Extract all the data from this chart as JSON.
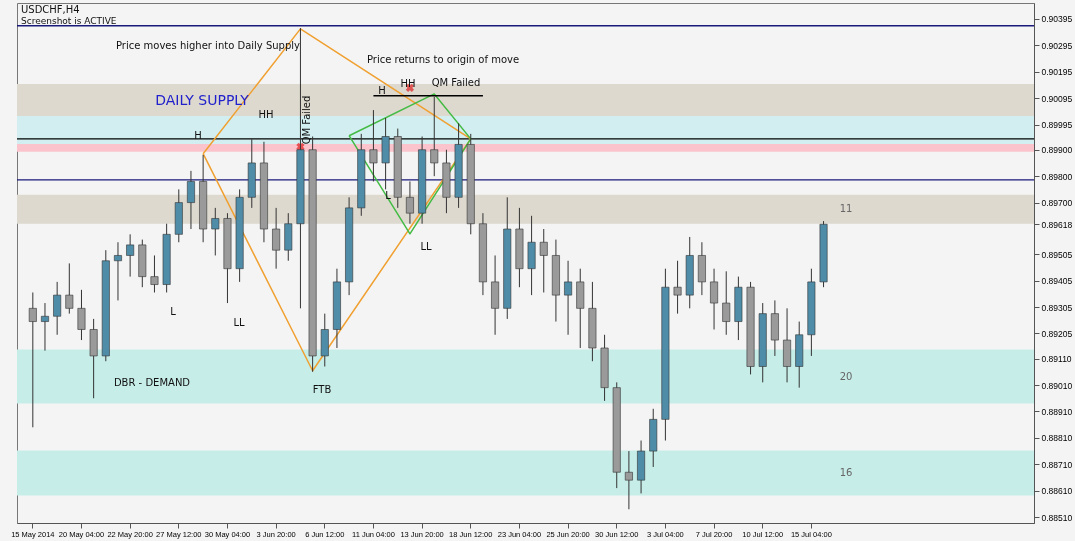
{
  "chart_data": {
    "type": "candlestick",
    "title": "USDCHF,H4",
    "subtitle": "Screenshot is ACTIVE",
    "categories": [
      "15 May 2014",
      null,
      null,
      null,
      "20 May 04:00",
      null,
      null,
      null,
      "22 May 20:00",
      null,
      null,
      null,
      "27 May 12:00",
      null,
      null,
      null,
      "30 May 04:00",
      null,
      null,
      null,
      "3 Jun 20:00",
      null,
      null,
      null,
      "6 Jun 12:00",
      null,
      null,
      null,
      "11 Jun 04:00",
      null,
      null,
      null,
      "13 Jun 20:00",
      null,
      null,
      null,
      "18 Jun 12:00",
      null,
      null,
      null,
      "23 Jun 04:00",
      null,
      null,
      null,
      "25 Jun 20:00",
      null,
      null,
      null,
      "30 Jun 12:00",
      null,
      null,
      null,
      "3 Jul 04:00",
      null,
      null,
      null,
      "7 Jul 20:00",
      null,
      null,
      null,
      "10 Jul 12:00",
      null,
      null,
      null,
      "15 Jul 04:00",
      null,
      null,
      null,
      null,
      null,
      null,
      null,
      null,
      null,
      null,
      null,
      null,
      null,
      null,
      null,
      null,
      null
    ],
    "ohlc": [
      [
        0.893,
        0.8936,
        0.8885,
        0.8925
      ],
      [
        0.8925,
        0.8932,
        0.8914,
        0.8927
      ],
      [
        0.8927,
        0.894,
        0.892,
        0.8935
      ],
      [
        0.8935,
        0.8947,
        0.8928,
        0.893
      ],
      [
        0.893,
        0.8937,
        0.8918,
        0.8922
      ],
      [
        0.8922,
        0.8926,
        0.8896,
        0.8912
      ],
      [
        0.8912,
        0.8952,
        0.891,
        0.8948
      ],
      [
        0.8948,
        0.8955,
        0.8933,
        0.895
      ],
      [
        0.895,
        0.8958,
        0.8942,
        0.8954
      ],
      [
        0.8954,
        0.8956,
        0.8938,
        0.8942
      ],
      [
        0.8942,
        0.895,
        0.8936,
        0.8939
      ],
      [
        0.8939,
        0.8962,
        0.8936,
        0.8958
      ],
      [
        0.8958,
        0.8975,
        0.8955,
        0.897
      ],
      [
        0.897,
        0.8982,
        0.896,
        0.8978
      ],
      [
        0.8978,
        0.8988,
        0.8955,
        0.896
      ],
      [
        0.896,
        0.8968,
        0.895,
        0.8964
      ],
      [
        0.8964,
        0.8966,
        0.8932,
        0.8945
      ],
      [
        0.8945,
        0.8975,
        0.894,
        0.8972
      ],
      [
        0.8972,
        0.8994,
        0.8968,
        0.8985
      ],
      [
        0.8985,
        0.8993,
        0.8955,
        0.896
      ],
      [
        0.896,
        0.8968,
        0.8945,
        0.8952
      ],
      [
        0.8952,
        0.8966,
        0.8948,
        0.8962
      ],
      [
        0.8962,
        0.9036,
        0.893,
        0.899
      ],
      [
        0.899,
        0.8995,
        0.8906,
        0.8912
      ],
      [
        0.8912,
        0.8928,
        0.8908,
        0.8922
      ],
      [
        0.8922,
        0.8945,
        0.8915,
        0.894
      ],
      [
        0.894,
        0.8972,
        0.8935,
        0.8968
      ],
      [
        0.8968,
        0.8996,
        0.8965,
        0.899
      ],
      [
        0.899,
        0.9005,
        0.8978,
        0.8985
      ],
      [
        0.8985,
        0.9002,
        0.8975,
        0.8995
      ],
      [
        0.8995,
        0.8998,
        0.8968,
        0.8972
      ],
      [
        0.8972,
        0.8978,
        0.8962,
        0.8966
      ],
      [
        0.8966,
        0.8995,
        0.8962,
        0.899
      ],
      [
        0.899,
        0.901,
        0.898,
        0.8985
      ],
      [
        0.8985,
        0.899,
        0.8966,
        0.8972
      ],
      [
        0.8972,
        0.9,
        0.8968,
        0.8992
      ],
      [
        0.8992,
        0.8996,
        0.8958,
        0.8962
      ],
      [
        0.8962,
        0.8966,
        0.8935,
        0.894
      ],
      [
        0.894,
        0.895,
        0.892,
        0.893
      ],
      [
        0.893,
        0.8972,
        0.8926,
        0.896
      ],
      [
        0.896,
        0.8968,
        0.8938,
        0.8945
      ],
      [
        0.8945,
        0.8965,
        0.8935,
        0.8955
      ],
      [
        0.8955,
        0.896,
        0.8936,
        0.895
      ],
      [
        0.895,
        0.8956,
        0.8925,
        0.8935
      ],
      [
        0.8935,
        0.8948,
        0.892,
        0.894
      ],
      [
        0.894,
        0.8945,
        0.8915,
        0.893
      ],
      [
        0.893,
        0.894,
        0.891,
        0.8915
      ],
      [
        0.8915,
        0.892,
        0.8895,
        0.89
      ],
      [
        0.89,
        0.8902,
        0.8862,
        0.8868
      ],
      [
        0.8868,
        0.8876,
        0.8854,
        0.8865
      ],
      [
        0.8865,
        0.888,
        0.886,
        0.8876
      ],
      [
        0.8876,
        0.8892,
        0.887,
        0.8888
      ],
      [
        0.8888,
        0.8945,
        0.888,
        0.8938
      ],
      [
        0.8938,
        0.8948,
        0.8928,
        0.8935
      ],
      [
        0.8935,
        0.8957,
        0.893,
        0.895
      ],
      [
        0.895,
        0.8955,
        0.8935,
        0.894
      ],
      [
        0.894,
        0.8945,
        0.8922,
        0.8932
      ],
      [
        0.8932,
        0.8944,
        0.892,
        0.8925
      ],
      [
        0.8925,
        0.8942,
        0.8918,
        0.8938
      ],
      [
        0.8938,
        0.894,
        0.8905,
        0.8908
      ],
      [
        0.8908,
        0.8932,
        0.8902,
        0.8928
      ],
      [
        0.8928,
        0.8933,
        0.8912,
        0.8918
      ],
      [
        0.8918,
        0.893,
        0.8902,
        0.8908
      ],
      [
        0.8908,
        0.8925,
        0.89,
        0.892
      ],
      [
        0.892,
        0.8945,
        0.8912,
        0.894
      ],
      [
        0.894,
        0.8963,
        0.8938,
        0.89618
      ],
      null,
      null,
      null,
      null,
      null,
      null,
      null,
      null,
      null,
      null,
      null,
      null,
      null,
      null,
      null,
      null
    ],
    "colors": [
      "#9a9a9a",
      "#4f8ca8",
      "#4f8ca8",
      "#9a9a9a",
      "#9a9a9a",
      "#9a9a9a",
      "#4f8ca8",
      "#4f8ca8",
      "#4f8ca8",
      "#9a9a9a",
      "#9a9a9a",
      "#4f8ca8",
      "#4f8ca8",
      "#4f8ca8",
      "#9a9a9a",
      "#4f8ca8",
      "#9a9a9a",
      "#4f8ca8",
      "#4f8ca8",
      "#9a9a9a",
      "#9a9a9a",
      "#4f8ca8",
      "#4f8ca8",
      "#9a9a9a",
      "#4f8ca8",
      "#4f8ca8",
      "#4f8ca8",
      "#4f8ca8",
      "#9a9a9a",
      "#4f8ca8",
      "#9a9a9a",
      "#9a9a9a",
      "#4f8ca8",
      "#9a9a9a",
      "#9a9a9a",
      "#4f8ca8",
      "#9a9a9a",
      "#9a9a9a",
      "#9a9a9a",
      "#4f8ca8",
      "#9a9a9a",
      "#4f8ca8",
      "#9a9a9a",
      "#9a9a9a",
      "#4f8ca8",
      "#9a9a9a",
      "#9a9a9a",
      "#9a9a9a",
      "#9a9a9a",
      "#9a9a9a",
      "#4f8ca8",
      "#4f8ca8",
      "#4f8ca8",
      "#9a9a9a",
      "#4f8ca8",
      "#9a9a9a",
      "#9a9a9a",
      "#9a9a9a",
      "#4f8ca8",
      "#9a9a9a",
      "#4f8ca8",
      "#9a9a9a",
      "#9a9a9a",
      "#4f8ca8",
      "#4f8ca8",
      "#4f8ca8",
      null,
      null,
      null,
      null,
      null,
      null,
      null,
      null,
      null,
      null,
      null,
      null,
      null,
      null,
      null,
      null
    ],
    "series": [
      {
        "type": "line",
        "color": "#f0a030",
        "values": [
          null,
          null,
          null,
          null,
          null,
          null,
          null,
          null,
          null,
          null,
          null,
          null,
          null,
          null,
          0.89885,
          null,
          null,
          null,
          null,
          null,
          null,
          null,
          0.90357,
          null,
          null,
          null,
          null,
          null,
          null,
          null,
          null,
          null,
          null,
          null,
          null,
          null,
          0.89941,
          null,
          null,
          null,
          null,
          null,
          null,
          null,
          null,
          null,
          null,
          null,
          null,
          null,
          null,
          null,
          null,
          null,
          null,
          null,
          null,
          null,
          null,
          null,
          null,
          null,
          null,
          null,
          null,
          null,
          null,
          null,
          null,
          null,
          null,
          null,
          null,
          null,
          null,
          null,
          null,
          null,
          null,
          null,
          null,
          null
        ]
      },
      {
        "type": "line",
        "color": "#f0a030",
        "values": [
          null,
          null,
          null,
          null,
          null,
          null,
          null,
          null,
          null,
          null,
          null,
          null,
          null,
          null,
          0.89885,
          null,
          null,
          null,
          null,
          null,
          null,
          null,
          null,
          0.89064,
          null,
          null,
          null,
          null,
          null,
          null,
          null,
          null,
          null,
          null,
          null,
          null,
          0.89941,
          null,
          null,
          null,
          null,
          null,
          null,
          null,
          null,
          null,
          null,
          null,
          null,
          null,
          null,
          null,
          null,
          null,
          null,
          null,
          null,
          null,
          null,
          null,
          null,
          null,
          null,
          null,
          null,
          null,
          null,
          null,
          null,
          null,
          null,
          null,
          null,
          null,
          null,
          null,
          null,
          null,
          null,
          null,
          null,
          null
        ]
      },
      {
        "type": "line",
        "color": "#44bb44",
        "values": [
          null,
          null,
          null,
          null,
          null,
          null,
          null,
          null,
          null,
          null,
          null,
          null,
          null,
          null,
          null,
          null,
          null,
          null,
          null,
          null,
          null,
          null,
          null,
          null,
          null,
          null,
          0.89953,
          null,
          null,
          null,
          null,
          null,
          null,
          0.90111,
          null,
          null,
          0.89941,
          null,
          null,
          null,
          null,
          null,
          null,
          null,
          null,
          null,
          null,
          null,
          null,
          null,
          null,
          null,
          null,
          null,
          null,
          null,
          null,
          null,
          null,
          null,
          null,
          null,
          null,
          null,
          null,
          null,
          null,
          null,
          null,
          null,
          null,
          null,
          null,
          null,
          null,
          null,
          null,
          null,
          null,
          null,
          null,
          null
        ]
      },
      {
        "type": "line",
        "color": "#44bb44",
        "values": [
          null,
          null,
          null,
          null,
          null,
          null,
          null,
          null,
          null,
          null,
          null,
          null,
          null,
          null,
          null,
          null,
          null,
          null,
          null,
          null,
          null,
          null,
          null,
          null,
          null,
          null,
          0.89953,
          null,
          null,
          null,
          null,
          0.89582,
          null,
          null,
          null,
          null,
          0.89941,
          null,
          null,
          null,
          null,
          null,
          null,
          null,
          null,
          null,
          null,
          null,
          null,
          null,
          null,
          null,
          null,
          null,
          null,
          null,
          null,
          null,
          null,
          null,
          null,
          null,
          null,
          null,
          null,
          null,
          null,
          null,
          null,
          null,
          null,
          null,
          null,
          null,
          null,
          null,
          null,
          null,
          null,
          null,
          null,
          null
        ]
      },
      {
        "type": "line",
        "color": "#000000",
        "values": [
          null,
          null,
          null,
          null,
          null,
          null,
          null,
          null,
          null,
          null,
          null,
          null,
          null,
          null,
          null,
          null,
          null,
          null,
          null,
          null,
          null,
          null,
          null,
          null,
          null,
          null,
          null,
          null,
          0.90104,
          null,
          null,
          null,
          null,
          null,
          null,
          null,
          null,
          0.90104,
          null,
          null,
          null,
          null,
          null,
          null,
          null,
          null,
          null,
          null,
          null,
          null,
          null,
          null,
          null,
          null,
          null,
          null,
          null,
          null,
          null,
          null,
          null,
          null,
          null,
          null,
          null,
          null,
          null,
          null,
          null,
          null,
          null,
          null,
          null,
          null,
          null,
          null,
          null,
          null,
          null,
          null,
          null,
          null
        ]
      },
      {
        "type": "scatter",
        "marker": "cross",
        "color": "#e02020",
        "values": [
          null,
          null,
          null,
          null,
          null,
          null,
          null,
          null,
          null,
          null,
          null,
          null,
          null,
          null,
          null,
          null,
          null,
          null,
          null,
          null,
          null,
          null,
          0.89911,
          null,
          null,
          null,
          null,
          null,
          null,
          null,
          null,
          0.90134,
          null,
          null,
          null,
          null,
          null,
          null,
          null,
          null,
          null,
          null,
          null,
          null,
          null,
          null,
          null,
          null,
          null,
          null,
          null,
          null,
          null,
          null,
          null,
          null,
          null,
          null,
          null,
          null,
          null,
          null,
          null,
          null,
          null,
          null,
          null,
          null,
          null,
          null,
          null,
          null,
          null,
          null,
          null,
          null,
          null,
          null,
          null,
          null,
          null,
          null
        ]
      }
    ],
    "ref_lines": [
      {
        "axis": "y",
        "value": 0.90369,
        "color": "#1a1a7a"
      },
      {
        "axis": "y",
        "value": 0.89786,
        "color": "#1a1a7a"
      },
      {
        "axis": "y",
        "value": 0.89941,
        "color": "#000000"
      }
    ],
    "bands": [
      {
        "axis": "y",
        "from": 0.90028,
        "to": 0.90149,
        "color": "#ddd9cf"
      },
      {
        "axis": "y",
        "from": 0.89922,
        "to": 0.90028,
        "color": "#d2eef0"
      },
      {
        "axis": "y",
        "from": 0.89892,
        "to": 0.89922,
        "color": "#fbc4cc"
      },
      {
        "axis": "y",
        "from": 0.8962,
        "to": 0.8973,
        "color": "#ddd9cf",
        "label": "11"
      },
      {
        "axis": "y",
        "from": 0.8894,
        "to": 0.89144,
        "color": "#c6ede8",
        "label": "20"
      },
      {
        "axis": "y",
        "from": 0.88592,
        "to": 0.88762,
        "color": "#c6ede8",
        "label": "16"
      }
    ],
    "annotations": [
      "Price moves higher into Daily Supply",
      "Price returns to origin of move",
      "DAILY SUPPLY",
      {
        "text": "H",
        "y": 0.89953
      },
      "HH",
      "L",
      "LL",
      "QM Failed",
      "H",
      "HH",
      {
        "text": "QM Failed",
        "y": 0.90153
      },
      {
        "text": "L",
        "y": 0.89726
      },
      "LL",
      "FTB",
      "DBR  -  DEMAND"
    ],
    "ylim": [
      0.88488,
      0.90455
    ],
    "yticks": [
      0.90395,
      0.90295,
      0.90195,
      0.90095,
      0.89995,
      {
        "value": 0.899,
        "label": "0.89900"
      },
      {
        "value": 0.898,
        "label": "0.89800"
      },
      {
        "value": 0.897,
        "label": "0.89700"
      },
      0.89618,
      0.89505,
      0.89405,
      0.89305,
      0.89205,
      {
        "value": 0.8911,
        "label": "0.89110"
      },
      {
        "value": 0.8901,
        "label": "0.89010"
      },
      {
        "value": 0.8891,
        "label": "0.88910"
      },
      {
        "value": 0.8881,
        "label": "0.88810"
      },
      {
        "value": 0.8871,
        "label": "0.88710"
      },
      {
        "value": 0.8861,
        "label": "0.88610"
      },
      {
        "value": 0.8851,
        "label": "0.88510"
      }
    ],
    "grid": false
  }
}
